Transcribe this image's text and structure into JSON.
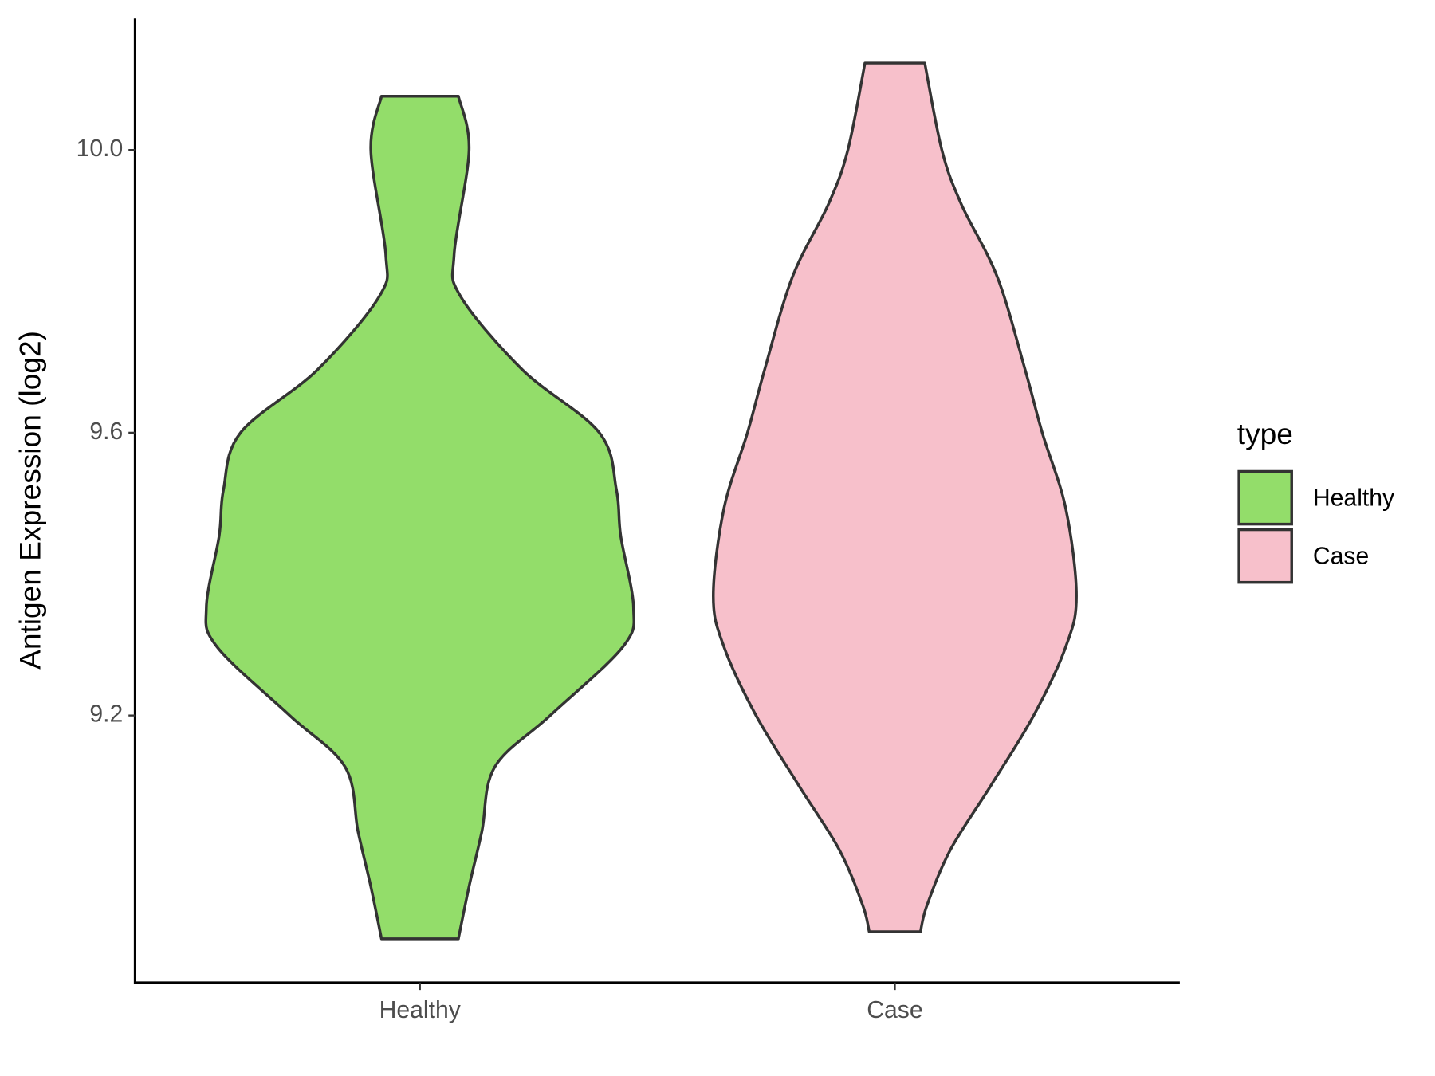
{
  "chart_data": {
    "type": "violin",
    "y_label": "Antigen Expression (log2)",
    "categories": [
      "Healthy",
      "Case"
    ],
    "legend_title": "type",
    "legend_position": "right",
    "ylim": [
      8.822,
      10.186
    ],
    "yticks": [
      9.2,
      9.6,
      {
        "value": 10,
        "label": "10.0"
      }
    ],
    "series": [
      {
        "name": "Healthy",
        "color": "#93dd6a",
        "y": [
          10.076,
          10.0,
          9.852,
          9.793,
          9.689,
          9.6,
          9.519,
          9.454,
          9.353,
          9.297,
          9.2,
          9.127,
          9.036,
          8.958,
          8.884
        ],
        "density": [
          0.18,
          0.23,
          0.16,
          0.19,
          0.48,
          0.84,
          0.92,
          0.94,
          1.0,
          0.95,
          0.61,
          0.35,
          0.29,
          0.23,
          0.18
        ]
      },
      {
        "name": "Case",
        "color": "#f7c0cb",
        "y": [
          10.123,
          10.0,
          9.924,
          9.82,
          9.689,
          9.6,
          9.493,
          9.369,
          9.297,
          9.2,
          9.101,
          9.01,
          8.931,
          8.894
        ],
        "density": [
          0.14,
          0.22,
          0.31,
          0.48,
          0.61,
          0.69,
          0.8,
          0.85,
          0.8,
          0.65,
          0.45,
          0.26,
          0.15,
          0.12
        ]
      }
    ]
  }
}
